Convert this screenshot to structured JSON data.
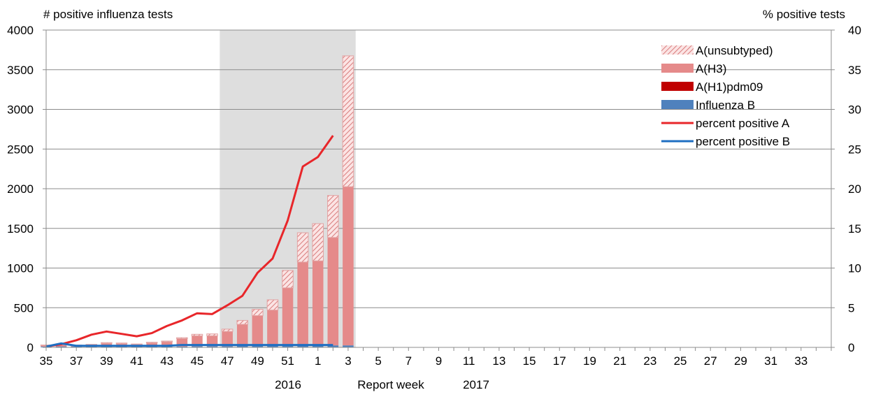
{
  "chart_data": {
    "type": "bar",
    "subtype": "stacked bar with line overlay (secondary y-axis)",
    "title": "",
    "left_axis": {
      "title": "# positive influenza tests",
      "range": [
        0,
        4000
      ],
      "ticks": [
        "0",
        "500",
        "1000",
        "1500",
        "2000",
        "2500",
        "3000",
        "3500",
        "4000"
      ]
    },
    "right_axis": {
      "title": "% positive tests",
      "range": [
        0,
        40
      ],
      "ticks": [
        "0",
        "5",
        "10",
        "15",
        "20",
        "25",
        "30",
        "35",
        "40"
      ]
    },
    "x_axis": {
      "title": "Report week",
      "categories": [
        "35",
        "36",
        "37",
        "38",
        "39",
        "40",
        "41",
        "42",
        "43",
        "44",
        "45",
        "46",
        "47",
        "48",
        "49",
        "50",
        "51",
        "52",
        "1",
        "2",
        "3",
        "4",
        "5",
        "6",
        "7",
        "8",
        "9",
        "10",
        "11",
        "12",
        "13",
        "14",
        "15",
        "16",
        "17",
        "18",
        "19",
        "20",
        "21",
        "22",
        "23",
        "24",
        "25",
        "26",
        "27",
        "28",
        "29",
        "30",
        "31",
        "32",
        "33",
        "34",
        "35"
      ],
      "tick_labels": [
        "35",
        "37",
        "39",
        "41",
        "43",
        "45",
        "47",
        "49",
        "51",
        "1",
        "3",
        "5",
        "7",
        "9",
        "11",
        "13",
        "15",
        "17",
        "19",
        "21",
        "23",
        "25",
        "27",
        "29",
        "31",
        "33"
      ],
      "year_labels": [
        "2016",
        "2017"
      ]
    },
    "grid": "horizontal gridlines",
    "legend_position": "top-right",
    "shaded_region": {
      "from_week": "47",
      "to_week": "3"
    },
    "series": [
      {
        "name": "A(unsubtyped)",
        "kind": "bar",
        "color": "#E07A7A",
        "pattern": "hatched",
        "values": [
          5,
          8,
          5,
          8,
          10,
          10,
          8,
          10,
          10,
          12,
          20,
          25,
          30,
          50,
          80,
          130,
          220,
          370,
          470,
          530,
          1650
        ]
      },
      {
        "name": "A(H3)",
        "kind": "bar",
        "color": "#E58A8A",
        "values": [
          15,
          20,
          15,
          20,
          40,
          35,
          25,
          45,
          60,
          100,
          130,
          130,
          185,
          270,
          380,
          450,
          730,
          1050,
          1060,
          1360,
          2000
        ]
      },
      {
        "name": "A(H1)pdm09",
        "kind": "bar",
        "color": "#C00000",
        "values": [
          0,
          0,
          0,
          0,
          0,
          0,
          0,
          0,
          0,
          0,
          0,
          0,
          0,
          0,
          0,
          0,
          0,
          0,
          0,
          0,
          0
        ]
      },
      {
        "name": "Influenza B",
        "kind": "bar",
        "color": "#4F81BD",
        "values": [
          10,
          12,
          10,
          10,
          10,
          10,
          10,
          10,
          10,
          10,
          15,
          15,
          15,
          20,
          20,
          20,
          20,
          25,
          30,
          25,
          25
        ]
      },
      {
        "name": "percent positive A",
        "kind": "line",
        "axis": "right",
        "color": "#E8262A",
        "values": [
          0.1,
          0.4,
          0.9,
          1.6,
          2.0,
          1.7,
          1.4,
          1.8,
          2.7,
          3.4,
          4.3,
          4.2,
          5.3,
          6.5,
          9.4,
          11.2,
          16.0,
          22.8,
          24.0,
          26.7
        ]
      },
      {
        "name": "percent positive B",
        "kind": "line",
        "axis": "right",
        "color": "#1F6FC2",
        "values": [
          0.1,
          0.5,
          0.2,
          0.2,
          0.2,
          0.2,
          0.2,
          0.2,
          0.2,
          0.3,
          0.3,
          0.3,
          0.3,
          0.3,
          0.3,
          0.3,
          0.3,
          0.3,
          0.3,
          0.3
        ]
      }
    ]
  }
}
